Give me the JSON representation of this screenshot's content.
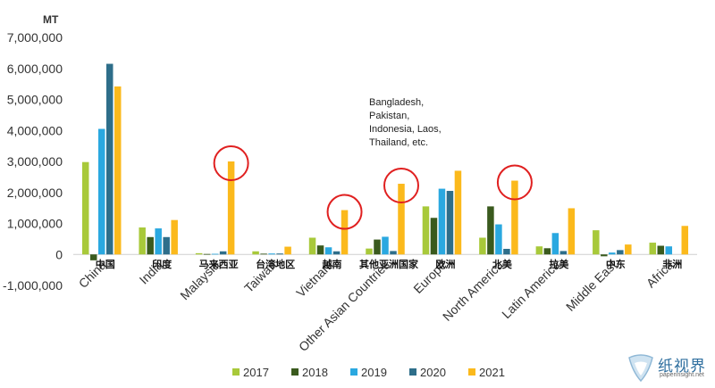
{
  "chart_data": {
    "type": "bar",
    "unit_label": "MT",
    "ylim": [
      -1000000,
      7000000
    ],
    "yticks": [
      -1000000,
      0,
      1000000,
      2000000,
      3000000,
      4000000,
      5000000,
      6000000,
      7000000
    ],
    "ytick_labels": [
      "-1,000,000",
      "0",
      "1,000,000",
      "2,000,000",
      "3,000,000",
      "4,000,000",
      "5,000,000",
      "6,000,000",
      "7,000,000"
    ],
    "categories": [
      "China",
      "India",
      "Malaysia",
      "Taiwan",
      "Vietnam",
      "Other Asian Countries",
      "Europe",
      "North America",
      "Latin America",
      "Middle East",
      "Africa"
    ],
    "categories_zh": [
      "中国",
      "印度",
      "马来西亚",
      "台湾地区",
      "越南",
      "其他亚洲国家",
      "欧洲",
      "北美",
      "拉美",
      "中东",
      "非洲"
    ],
    "series": [
      {
        "name": "2017",
        "color": "#a8c93a",
        "values": [
          2980000,
          870000,
          40000,
          100000,
          540000,
          190000,
          1550000,
          540000,
          260000,
          780000,
          380000
        ]
      },
      {
        "name": "2018",
        "color": "#3a5a1e",
        "values": [
          -190000,
          560000,
          15000,
          25000,
          290000,
          480000,
          1180000,
          1550000,
          200000,
          -60000,
          280000
        ]
      },
      {
        "name": "2019",
        "color": "#2aa8e0",
        "values": [
          4050000,
          840000,
          20000,
          30000,
          230000,
          570000,
          2120000,
          970000,
          690000,
          60000,
          260000
        ]
      },
      {
        "name": "2020",
        "color": "#2e6e8a",
        "values": [
          6150000,
          560000,
          100000,
          30000,
          100000,
          110000,
          2050000,
          180000,
          110000,
          140000,
          0
        ]
      },
      {
        "name": "2021",
        "color": "#fbb91c",
        "values": [
          5420000,
          1110000,
          3000000,
          250000,
          1430000,
          2280000,
          2700000,
          2380000,
          1490000,
          320000,
          920000
        ]
      }
    ],
    "highlight_color": "#e02020",
    "highlighted_bars": [
      {
        "category": "Malaysia",
        "series": "2021"
      },
      {
        "category": "Vietnam",
        "series": "2021"
      },
      {
        "category": "Other Asian Countries",
        "series": "2021"
      },
      {
        "category": "North America",
        "series": "2021"
      }
    ],
    "annotation": [
      "Bangladesh,",
      "Pakistan,",
      "Indonesia, Laos,",
      "Thailand, etc."
    ],
    "legend_position": "bottom",
    "grid": false
  },
  "watermark": {
    "name": "纸视界",
    "url": "paperinsight.net"
  }
}
